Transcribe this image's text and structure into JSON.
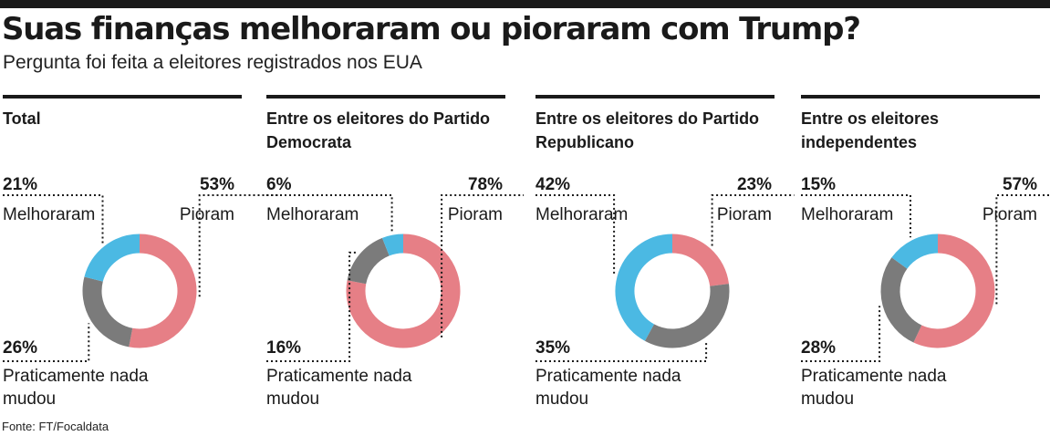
{
  "header": {
    "title": "Suas finanças melhoraram ou pioraram com Trump?",
    "subtitle": "Pergunta foi feita a eleitores registrados nos EUA"
  },
  "colors": {
    "melhoraram": "#4bb9e3",
    "pioram": "#e67f86",
    "nada": "#7b7b7b"
  },
  "chart_data": [
    {
      "type": "pie",
      "title": "Total",
      "slices": [
        {
          "label": "Melhoraram",
          "value": 21,
          "pct_label": "21%"
        },
        {
          "label": "Pioram",
          "value": 53,
          "pct_label": "53%"
        },
        {
          "label": "Praticamente nada mudou",
          "value": 26,
          "pct_label": "26%"
        }
      ]
    },
    {
      "type": "pie",
      "title": "Entre os eleitores do Partido Democrata",
      "slices": [
        {
          "label": "Melhoraram",
          "value": 6,
          "pct_label": "6%"
        },
        {
          "label": "Pioram",
          "value": 78,
          "pct_label": "78%"
        },
        {
          "label": "Praticamente nada mudou",
          "value": 16,
          "pct_label": "16%"
        }
      ]
    },
    {
      "type": "pie",
      "title": "Entre os eleitores do Partido Republicano",
      "slices": [
        {
          "label": "Melhoraram",
          "value": 42,
          "pct_label": "42%"
        },
        {
          "label": "Pioram",
          "value": 23,
          "pct_label": "23%"
        },
        {
          "label": "Praticamente nada mudou",
          "value": 35,
          "pct_label": "35%"
        }
      ]
    },
    {
      "type": "pie",
      "title": "Entre os eleitores independentes",
      "slices": [
        {
          "label": "Melhoraram",
          "value": 15,
          "pct_label": "15%"
        },
        {
          "label": "Pioram",
          "value": 57,
          "pct_label": "57%"
        },
        {
          "label": "Praticamente nada mudou",
          "value": 28,
          "pct_label": "28%"
        }
      ]
    }
  ],
  "source": "Fonte: FT/Focaldata"
}
